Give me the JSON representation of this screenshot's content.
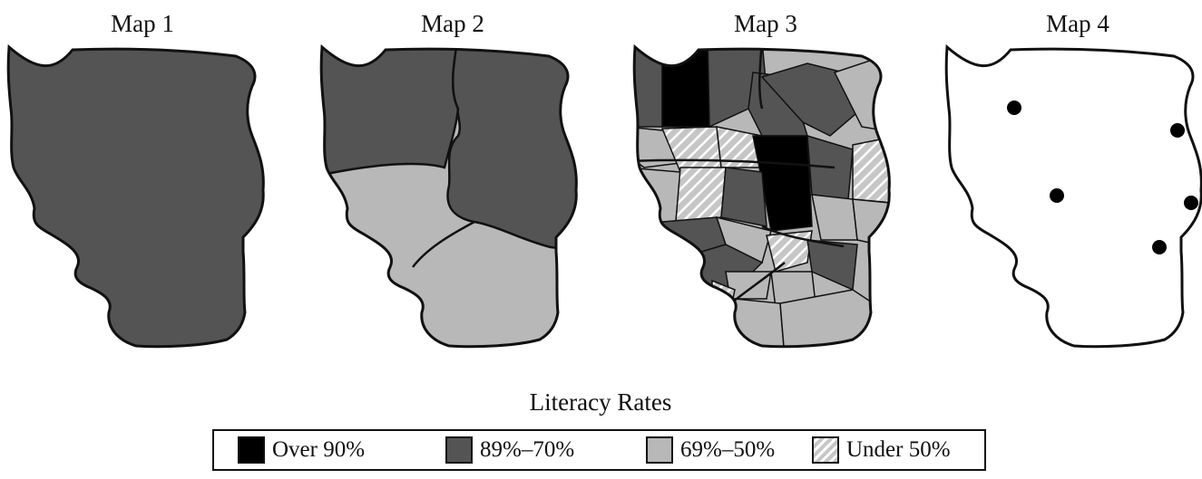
{
  "maps": [
    {
      "title": "Map 1"
    },
    {
      "title": "Map 2"
    },
    {
      "title": "Map 3"
    },
    {
      "title": "Map 4"
    }
  ],
  "legend": {
    "title": "Literacy Rates",
    "items": [
      {
        "label": "Over 90%",
        "color": "#000000"
      },
      {
        "label": "89%–70%",
        "color": "#545454"
      },
      {
        "label": "69%–50%",
        "color": "#b8b8b8"
      },
      {
        "label": "Under 50%",
        "color": "hatched"
      }
    ]
  },
  "colors": {
    "outline": "#111111",
    "over_90": "#000000",
    "range_89_70": "#545454",
    "range_69_50": "#b8b8b8",
    "under_50_hatch": "#c6c6c6"
  }
}
